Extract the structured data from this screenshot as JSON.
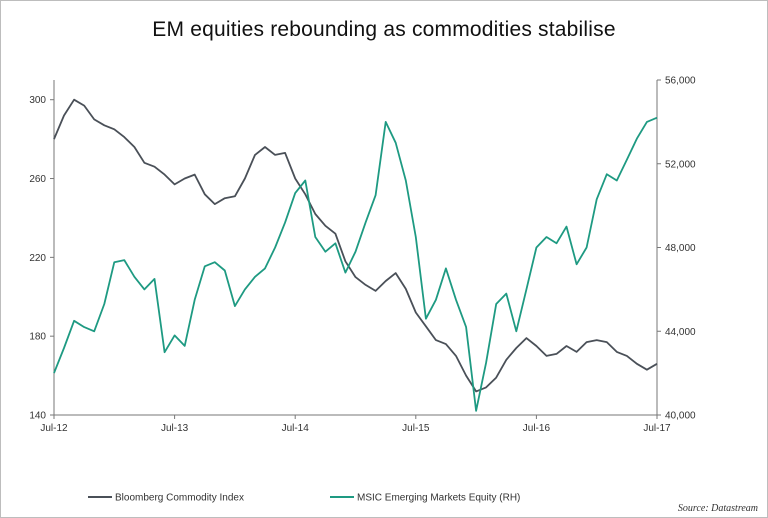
{
  "chart_data": {
    "type": "line",
    "title": "EM equities rebounding as commodities stabilise",
    "source": "Source: Datastream",
    "x_ticks": [
      "Jul-12",
      "Jul-13",
      "Jul-14",
      "Jul-15",
      "Jul-16",
      "Jul-17"
    ],
    "x_range": [
      "2012-07",
      "2017-07"
    ],
    "left_axis": {
      "ticks": [
        "140",
        "180",
        "220",
        "260",
        "300"
      ],
      "ylim": [
        140,
        310
      ]
    },
    "right_axis": {
      "ticks": [
        "40,000",
        "44,000",
        "48,000",
        "52,000",
        "56,000"
      ],
      "ylim": [
        40000,
        56000
      ]
    },
    "legend_position": "bottom",
    "series": [
      {
        "name": "Bloomberg Commodity Index",
        "axis": "left",
        "color": "#4a5058",
        "points": [
          [
            "2012-07",
            280
          ],
          [
            "2012-08",
            292
          ],
          [
            "2012-09",
            300
          ],
          [
            "2012-10",
            297
          ],
          [
            "2012-11",
            290
          ],
          [
            "2012-12",
            287
          ],
          [
            "2013-01",
            285
          ],
          [
            "2013-02",
            281
          ],
          [
            "2013-03",
            276
          ],
          [
            "2013-04",
            268
          ],
          [
            "2013-05",
            266
          ],
          [
            "2013-06",
            262
          ],
          [
            "2013-07",
            257
          ],
          [
            "2013-08",
            260
          ],
          [
            "2013-09",
            262
          ],
          [
            "2013-10",
            252
          ],
          [
            "2013-11",
            247
          ],
          [
            "2013-12",
            250
          ],
          [
            "2014-01",
            251
          ],
          [
            "2014-02",
            260
          ],
          [
            "2014-03",
            272
          ],
          [
            "2014-04",
            276
          ],
          [
            "2014-05",
            272
          ],
          [
            "2014-06",
            273
          ],
          [
            "2014-07",
            260
          ],
          [
            "2014-08",
            252
          ],
          [
            "2014-09",
            242
          ],
          [
            "2014-10",
            236
          ],
          [
            "2014-11",
            232
          ],
          [
            "2014-12",
            218
          ],
          [
            "2015-01",
            210
          ],
          [
            "2015-02",
            206
          ],
          [
            "2015-03",
            203
          ],
          [
            "2015-04",
            208
          ],
          [
            "2015-05",
            212
          ],
          [
            "2015-06",
            204
          ],
          [
            "2015-07",
            192
          ],
          [
            "2015-08",
            185
          ],
          [
            "2015-09",
            178
          ],
          [
            "2015-10",
            176
          ],
          [
            "2015-11",
            170
          ],
          [
            "2015-12",
            160
          ],
          [
            "2016-01",
            152
          ],
          [
            "2016-02",
            154
          ],
          [
            "2016-03",
            159
          ],
          [
            "2016-04",
            168
          ],
          [
            "2016-05",
            174
          ],
          [
            "2016-06",
            179
          ],
          [
            "2016-07",
            175
          ],
          [
            "2016-08",
            170
          ],
          [
            "2016-09",
            171
          ],
          [
            "2016-10",
            175
          ],
          [
            "2016-11",
            172
          ],
          [
            "2016-12",
            177
          ],
          [
            "2017-01",
            178
          ],
          [
            "2017-02",
            177
          ],
          [
            "2017-03",
            172
          ],
          [
            "2017-04",
            170
          ],
          [
            "2017-05",
            166
          ],
          [
            "2017-06",
            163
          ],
          [
            "2017-07",
            166
          ]
        ]
      },
      {
        "name": "MSIC Emerging Markets Equity (RH)",
        "axis": "right",
        "color": "#1e9a82",
        "points": [
          [
            "2012-07",
            42000
          ],
          [
            "2012-08",
            43200
          ],
          [
            "2012-09",
            44500
          ],
          [
            "2012-10",
            44200
          ],
          [
            "2012-11",
            44000
          ],
          [
            "2012-12",
            45300
          ],
          [
            "2013-01",
            47300
          ],
          [
            "2013-02",
            47400
          ],
          [
            "2013-03",
            46600
          ],
          [
            "2013-04",
            46000
          ],
          [
            "2013-05",
            46500
          ],
          [
            "2013-06",
            43000
          ],
          [
            "2013-07",
            43800
          ],
          [
            "2013-08",
            43300
          ],
          [
            "2013-09",
            45500
          ],
          [
            "2013-10",
            47100
          ],
          [
            "2013-11",
            47300
          ],
          [
            "2013-12",
            46900
          ],
          [
            "2014-01",
            45200
          ],
          [
            "2014-02",
            46000
          ],
          [
            "2014-03",
            46600
          ],
          [
            "2014-04",
            47000
          ],
          [
            "2014-05",
            48000
          ],
          [
            "2014-06",
            49200
          ],
          [
            "2014-07",
            50600
          ],
          [
            "2014-08",
            51200
          ],
          [
            "2014-09",
            48500
          ],
          [
            "2014-10",
            47800
          ],
          [
            "2014-11",
            48200
          ],
          [
            "2014-12",
            46800
          ],
          [
            "2015-01",
            47800
          ],
          [
            "2015-02",
            49200
          ],
          [
            "2015-03",
            50500
          ],
          [
            "2015-04",
            54000
          ],
          [
            "2015-05",
            53000
          ],
          [
            "2015-06",
            51200
          ],
          [
            "2015-07",
            48500
          ],
          [
            "2015-08",
            44600
          ],
          [
            "2015-09",
            45500
          ],
          [
            "2015-10",
            47000
          ],
          [
            "2015-11",
            45500
          ],
          [
            "2015-12",
            44200
          ],
          [
            "2016-01",
            40200
          ],
          [
            "2016-02",
            42500
          ],
          [
            "2016-03",
            45300
          ],
          [
            "2016-04",
            45800
          ],
          [
            "2016-05",
            44000
          ],
          [
            "2016-06",
            46000
          ],
          [
            "2016-07",
            48000
          ],
          [
            "2016-08",
            48500
          ],
          [
            "2016-09",
            48200
          ],
          [
            "2016-10",
            49000
          ],
          [
            "2016-11",
            47200
          ],
          [
            "2016-12",
            48000
          ],
          [
            "2017-01",
            50300
          ],
          [
            "2017-02",
            51500
          ],
          [
            "2017-03",
            51200
          ],
          [
            "2017-04",
            52200
          ],
          [
            "2017-05",
            53200
          ],
          [
            "2017-06",
            54000
          ],
          [
            "2017-07",
            54200
          ]
        ]
      }
    ]
  }
}
